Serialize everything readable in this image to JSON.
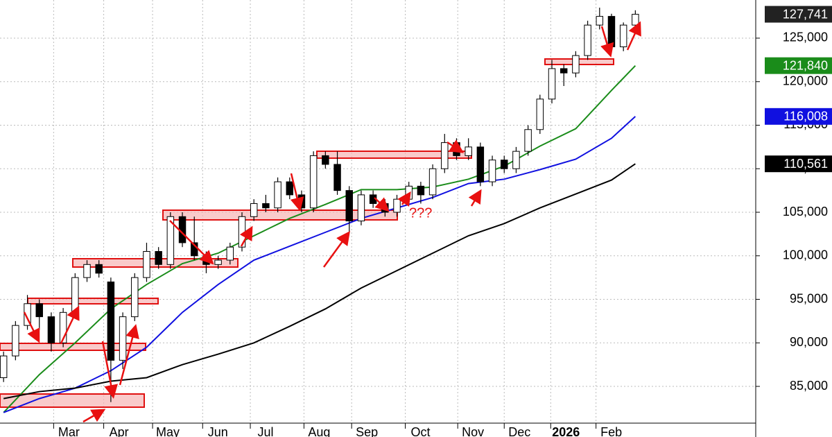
{
  "chart_data": {
    "type": "candlestick",
    "x": [
      0,
      1,
      2,
      3,
      4,
      5,
      6,
      7,
      8,
      9,
      10,
      11,
      12,
      13,
      14,
      15,
      16,
      17,
      18,
      19,
      20,
      21,
      22,
      23,
      24,
      25,
      26,
      27,
      28,
      29,
      30,
      31,
      32,
      33,
      34,
      35,
      36,
      37,
      38,
      39,
      40,
      41,
      42,
      43,
      44,
      45,
      46,
      47,
      48,
      49,
      50,
      51,
      52,
      53
    ],
    "open": [
      86000,
      88500,
      92000,
      94500,
      93000,
      90000,
      93500,
      97500,
      99000,
      97000,
      88000,
      93000,
      97500,
      100500,
      99000,
      104500,
      101500,
      100000,
      99000,
      99500,
      101000,
      104500,
      106000,
      105500,
      108500,
      107000,
      105500,
      111500,
      110500,
      107500,
      104000,
      107000,
      106000,
      105000,
      106500,
      108000,
      107000,
      110000,
      113000,
      111500,
      112500,
      108500,
      111000,
      110000,
      112000,
      114500,
      118000,
      121500,
      121000,
      123000,
      126500,
      127500,
      124000,
      126500
    ],
    "high": [
      89000,
      92500,
      95500,
      95000,
      93500,
      94000,
      98000,
      99500,
      99500,
      97500,
      93500,
      98000,
      101500,
      101000,
      105000,
      105000,
      104500,
      100500,
      100000,
      101500,
      105000,
      106500,
      107000,
      109000,
      109000,
      107500,
      112000,
      112000,
      112000,
      108000,
      107500,
      107500,
      106500,
      107000,
      108500,
      108500,
      110500,
      114000,
      113500,
      113500,
      113000,
      111500,
      111500,
      112500,
      115000,
      118500,
      122500,
      122000,
      123500,
      127000,
      128500,
      127800,
      126800,
      128200
    ],
    "low": [
      85500,
      88000,
      91500,
      91500,
      89000,
      89500,
      93000,
      97000,
      97500,
      83200,
      87000,
      92500,
      97000,
      98500,
      98500,
      101000,
      99500,
      98000,
      98500,
      99000,
      100500,
      104000,
      105000,
      105000,
      106500,
      105000,
      105000,
      110000,
      107000,
      102800,
      103500,
      105500,
      104500,
      104500,
      106000,
      106000,
      106500,
      109500,
      111000,
      111000,
      108000,
      108000,
      109500,
      109500,
      111500,
      114000,
      117500,
      119500,
      120500,
      122500,
      126000,
      123500,
      123500,
      126000
    ],
    "close": [
      88500,
      92000,
      94500,
      93000,
      90000,
      93500,
      97500,
      99000,
      98000,
      88000,
      93000,
      97500,
      100500,
      99000,
      104500,
      101500,
      100000,
      99000,
      99500,
      101000,
      104500,
      106000,
      105500,
      108500,
      107000,
      105500,
      111500,
      110500,
      107500,
      104000,
      107000,
      106000,
      105000,
      106500,
      108000,
      107000,
      110000,
      113000,
      111500,
      112500,
      108500,
      111000,
      110000,
      112000,
      114500,
      118000,
      121500,
      121000,
      123000,
      126500,
      127500,
      124000,
      126500,
      127741
    ],
    "last_value": 127741,
    "last_label": "127,741",
    "averages": [
      {
        "color": "#1a8c1a",
        "x": [
          0,
          3,
          6,
          9,
          12,
          15,
          18,
          21,
          24,
          27,
          30,
          33,
          36,
          39,
          42,
          45,
          48,
          51,
          53
        ],
        "values": [
          82000,
          86350,
          90000,
          93900,
          96700,
          99100,
          100300,
          102300,
          104300,
          105900,
          107600,
          107600,
          107900,
          108800,
          110300,
          112600,
          114600,
          119000,
          121840
        ],
        "last_label": "121,840"
      },
      {
        "color": "#1010e0",
        "x": [
          0,
          3,
          6,
          9,
          12,
          15,
          18,
          21,
          24,
          27,
          30,
          33,
          36,
          39,
          42,
          45,
          48,
          51,
          53
        ],
        "values": [
          82000,
          83600,
          84800,
          86800,
          89500,
          93500,
          96700,
          99500,
          101100,
          102700,
          104300,
          105500,
          106700,
          108300,
          108800,
          109900,
          111100,
          113500,
          116008
        ],
        "last_label": "116,008"
      },
      {
        "color": "#000000",
        "x": [
          0,
          3,
          6,
          9,
          12,
          15,
          18,
          21,
          24,
          27,
          30,
          33,
          36,
          39,
          42,
          45,
          48,
          51,
          53
        ],
        "values": [
          83600,
          84400,
          84800,
          85600,
          86000,
          87500,
          88700,
          90000,
          91900,
          93900,
          96300,
          98300,
          100300,
          102300,
          103700,
          105500,
          107100,
          108700,
          110561
        ],
        "last_label": "110,561"
      }
    ],
    "xlim": [
      -0.3,
      63.1
    ],
    "xticks": [
      {
        "value": 4.2,
        "label": "Mar"
      },
      {
        "value": 8.4,
        "label": "Apr"
      },
      {
        "value": 12.5,
        "label": "May"
      },
      {
        "value": 16.7,
        "label": "Jun"
      },
      {
        "value": 20.7,
        "label": "Jul"
      },
      {
        "value": 25.2,
        "label": "Aug"
      },
      {
        "value": 29.2,
        "label": "Sep"
      },
      {
        "value": 33.7,
        "label": "Oct"
      },
      {
        "value": 38.1,
        "label": "Nov"
      },
      {
        "value": 42,
        "label": "Dec"
      },
      {
        "value": 45.9,
        "label": "2026"
      },
      {
        "value": 49.7,
        "label": "Feb"
      }
    ],
    "ylim": [
      80780,
      129380
    ],
    "yticks": [
      {
        "value": 85000,
        "label": "85,000"
      },
      {
        "value": 90000,
        "label": "90,000"
      },
      {
        "value": 95000,
        "label": "95,000"
      },
      {
        "value": 100000,
        "label": "100,000"
      },
      {
        "value": 105000,
        "label": "105,000"
      },
      {
        "value": 110000,
        "label": "110,000"
      },
      {
        "value": 115000,
        "label": "115,000"
      },
      {
        "value": 120000,
        "label": "120,000"
      },
      {
        "value": 125000,
        "label": "125,000"
      }
    ],
    "grid": true,
    "annotation": "???"
  }
}
